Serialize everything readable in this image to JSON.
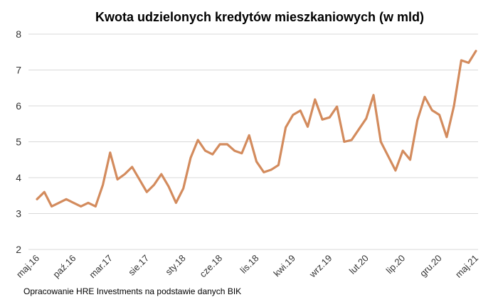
{
  "chart_data": {
    "type": "line",
    "title": "Kwota udzielonych kredytów mieszkaniowych (w mld)",
    "xlabel": "",
    "ylabel": "",
    "ylim": [
      2,
      8
    ],
    "yticks": [
      2,
      3,
      4,
      5,
      6,
      7,
      8
    ],
    "grid": true,
    "x_tick_labels": [
      "maj.16",
      "paź.16",
      "mar.17",
      "sie.17",
      "sty.18",
      "cze.18",
      "lis.18",
      "kwi.19",
      "wrz.19",
      "lut.20",
      "lip.20",
      "gru.20",
      "maj.21"
    ],
    "x_tick_every_months": 5,
    "series": [
      {
        "name": "Kwota udzielonych kredytów mieszkaniowych",
        "color": "#D38B5D",
        "values": [
          3.4,
          3.6,
          3.2,
          3.3,
          3.4,
          3.3,
          3.2,
          3.3,
          3.2,
          3.8,
          4.7,
          3.95,
          4.1,
          4.3,
          3.95,
          3.6,
          3.8,
          4.1,
          3.75,
          3.3,
          3.7,
          4.55,
          5.05,
          4.75,
          4.65,
          4.93,
          4.93,
          4.75,
          4.68,
          5.18,
          4.45,
          4.15,
          4.22,
          4.35,
          5.4,
          5.75,
          5.87,
          5.42,
          6.18,
          5.62,
          5.68,
          5.98,
          5.0,
          5.05,
          5.35,
          5.65,
          6.3,
          5.0,
          4.6,
          4.2,
          4.75,
          4.5,
          5.6,
          6.25,
          5.88,
          5.75,
          5.13,
          6.0,
          7.27,
          7.2,
          7.53
        ]
      }
    ]
  },
  "footer": {
    "source": "Opracowanie HRE Investments na podstawie danych BIK"
  }
}
